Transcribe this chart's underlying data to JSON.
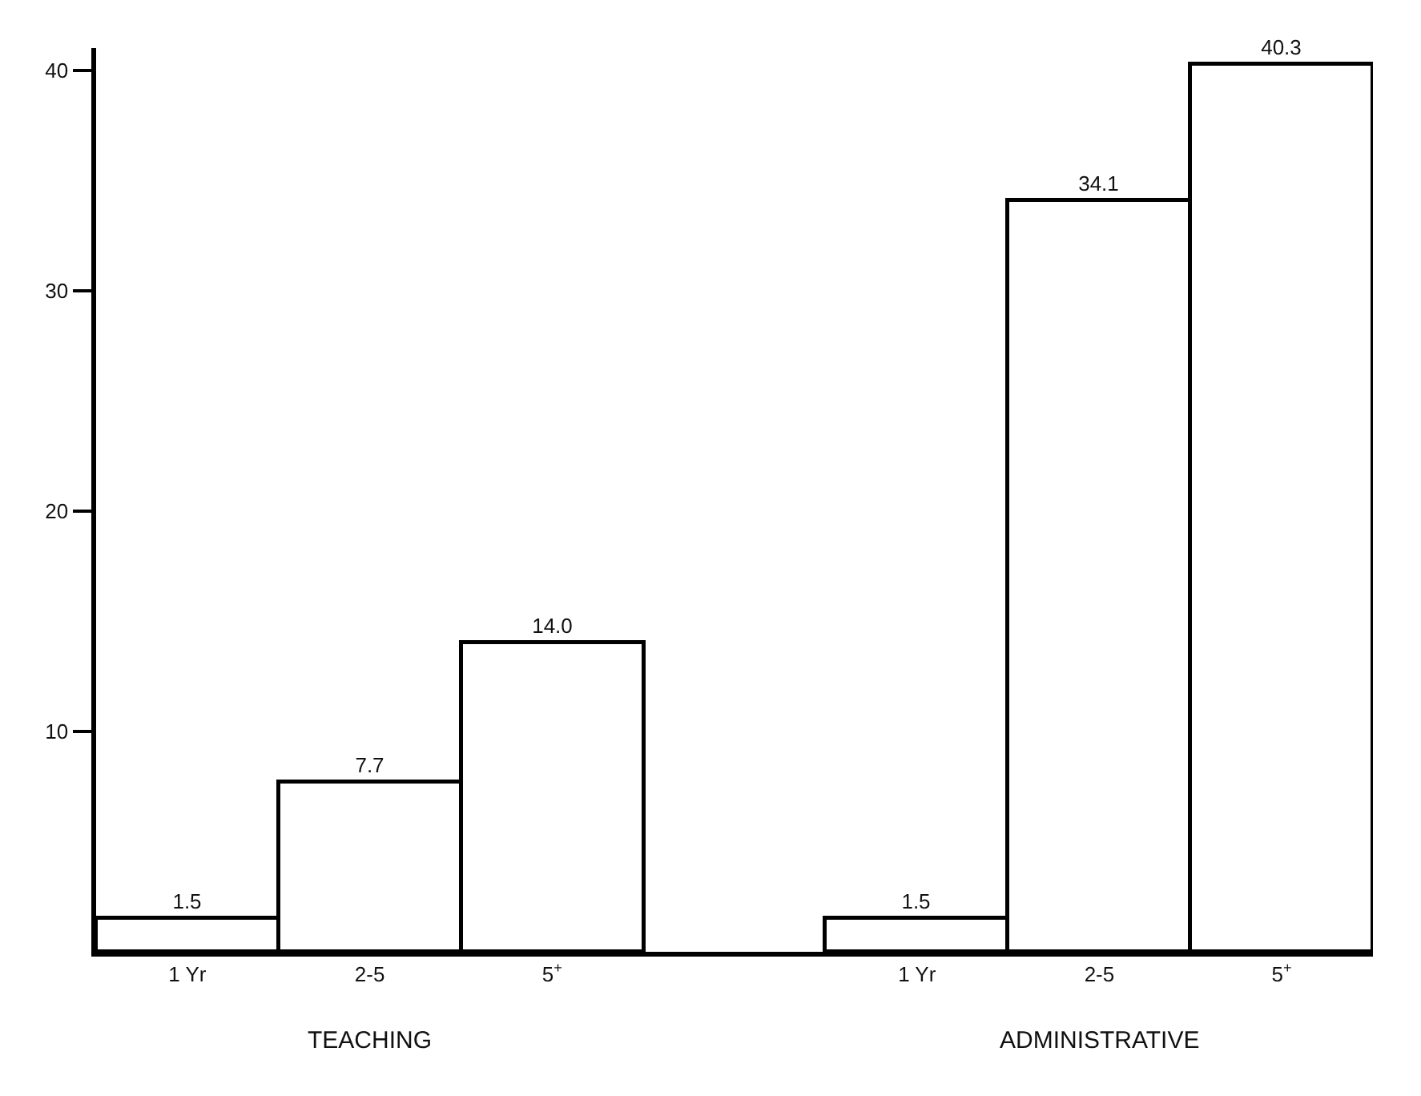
{
  "chart_data": {
    "type": "bar",
    "categories": [
      "1 Yr",
      "2-5",
      "5$^{+}$",
      null,
      "1 Yr",
      "2-5",
      "5$^{+}$"
    ],
    "values": [
      1.5,
      7.7,
      14.0,
      null,
      1.5,
      34.1,
      40.3
    ],
    "value_labels": [
      "1.5",
      "7.7",
      "14.0",
      null,
      "1.5",
      "34.1",
      "40.3"
    ],
    "color": "#ffffff",
    "ylim": [
      0,
      41
    ],
    "yticks": [
      10,
      20,
      30,
      40
    ],
    "annotations": [
      "TEACHING",
      "ADMINISTRATIVE"
    ]
  }
}
